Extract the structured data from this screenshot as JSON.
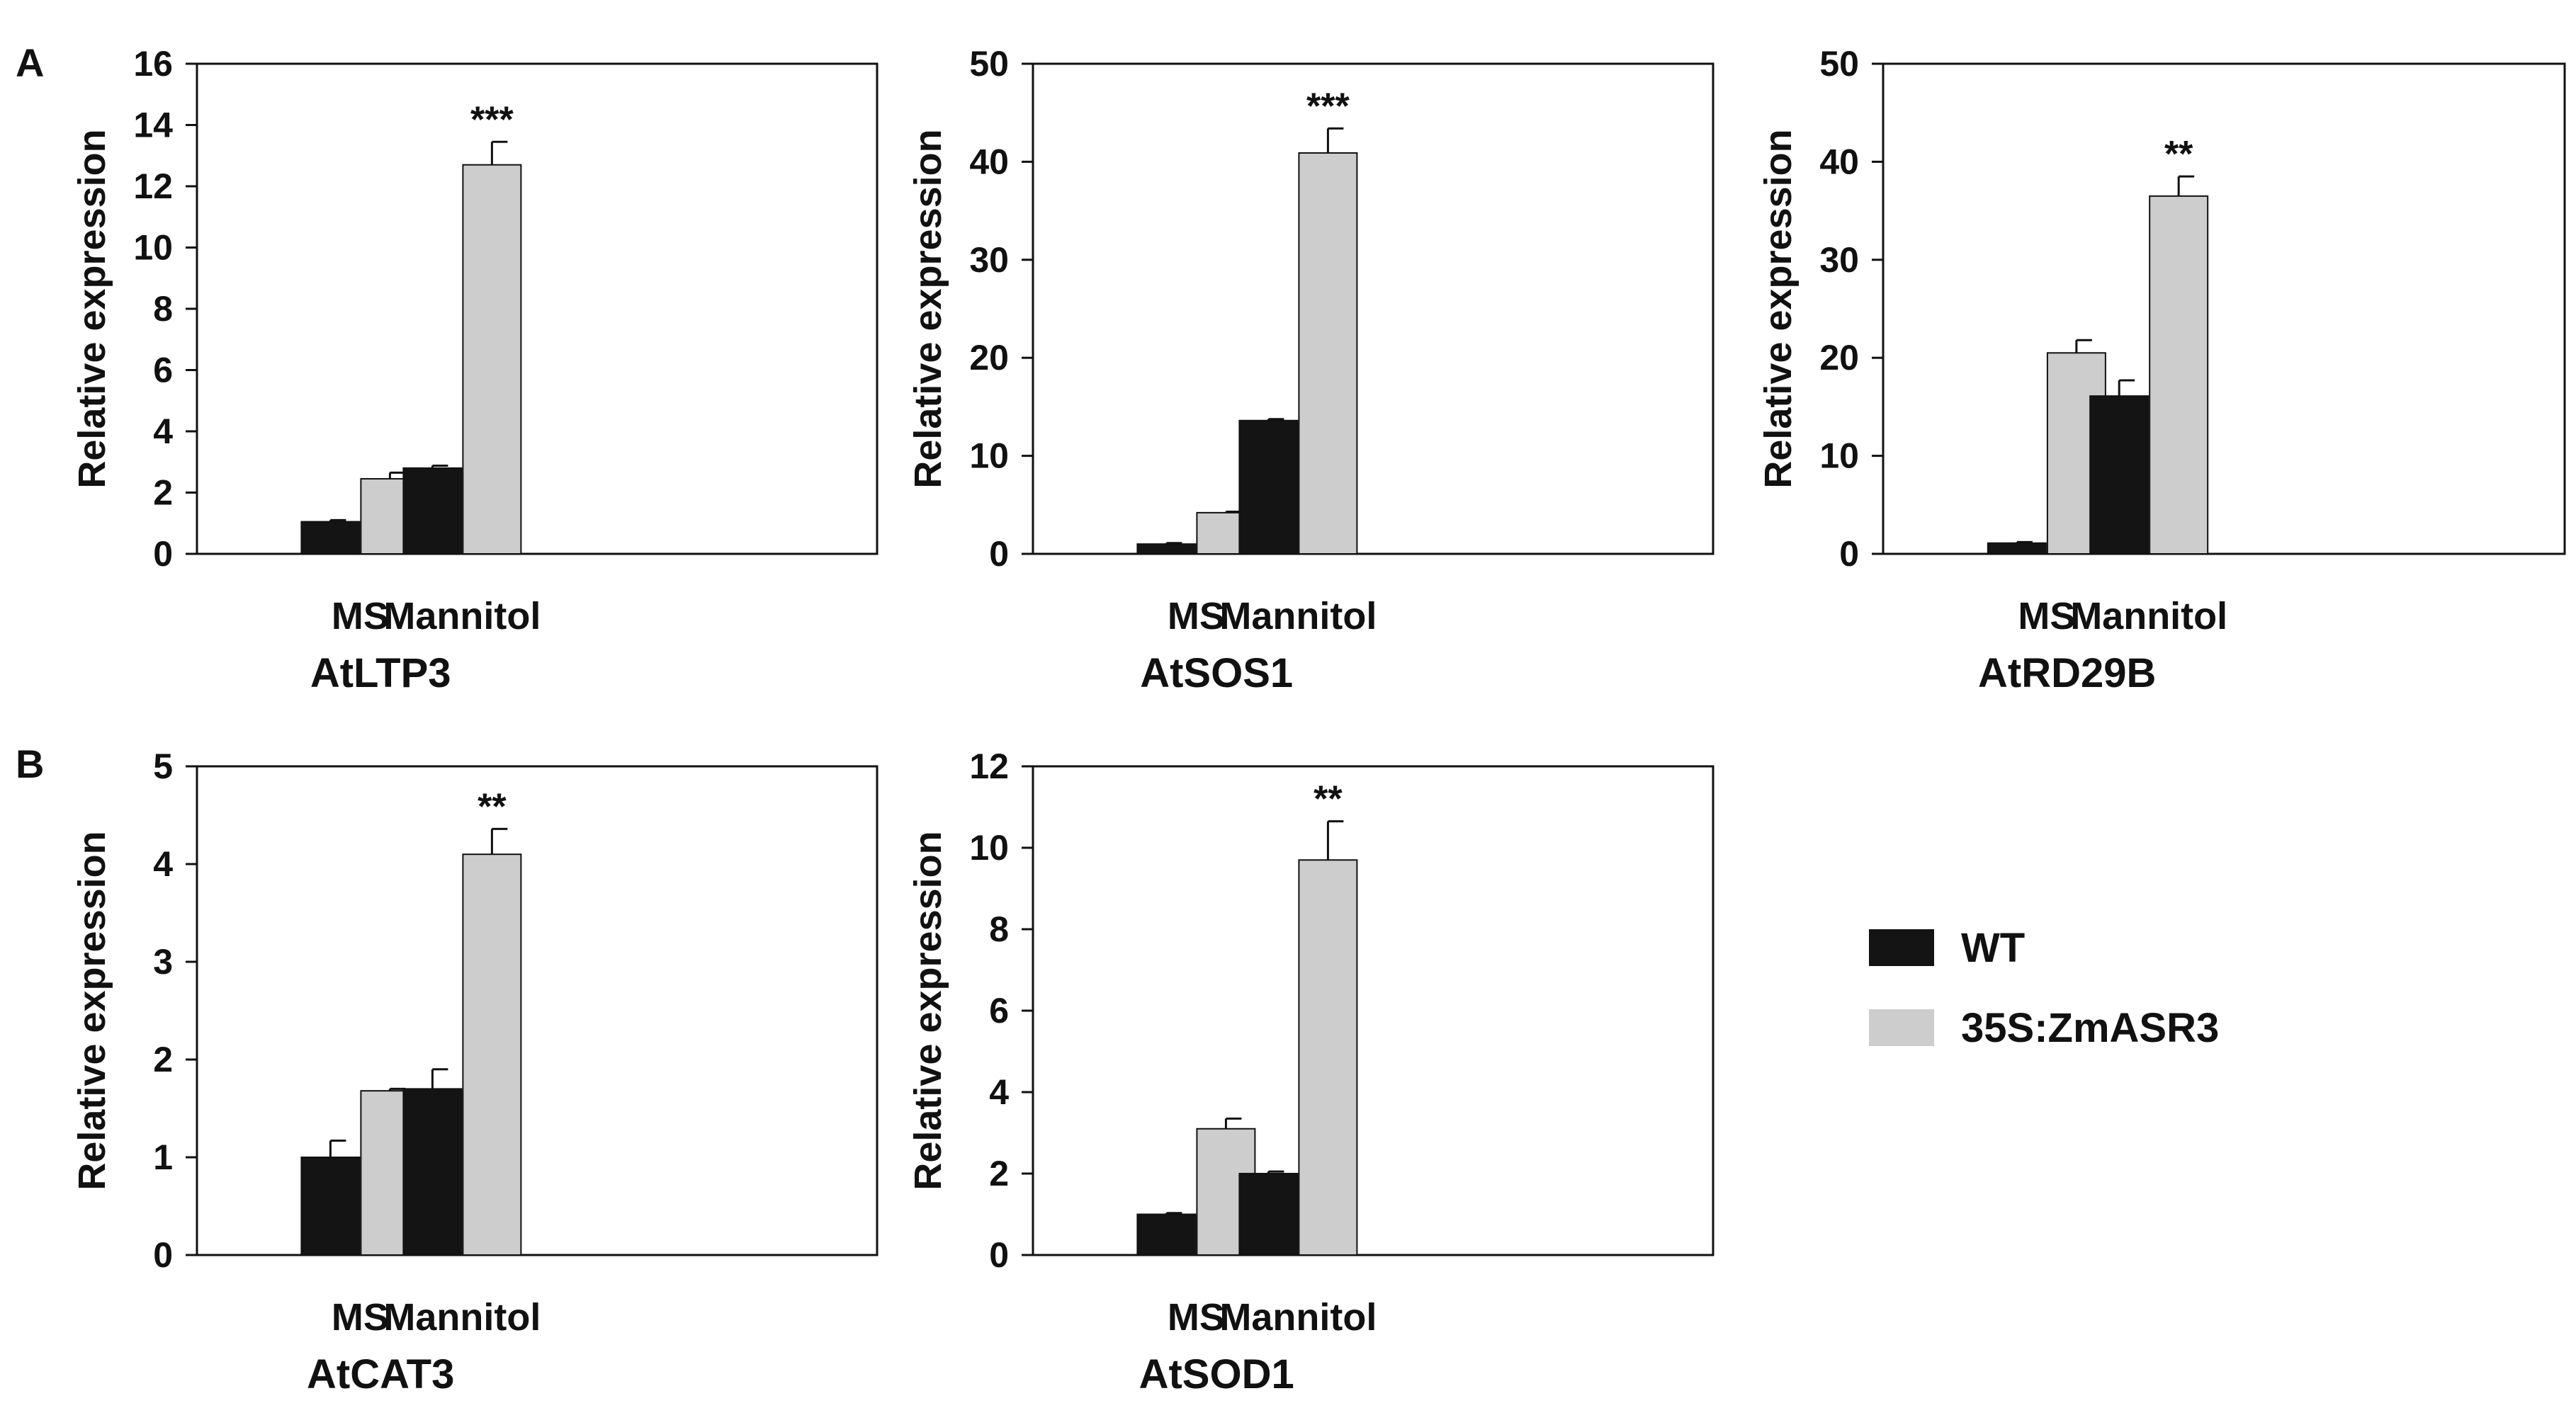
{
  "panel_labels": [
    "A",
    "B"
  ],
  "legend": [
    {
      "label": "WT",
      "color": "#141414"
    },
    {
      "label": "35S:ZmASR3",
      "color": "#cdcdcd"
    }
  ],
  "chart_data": [
    {
      "type": "bar",
      "panel": "A",
      "title": "AtLTP3",
      "xlabel": "AtLTP3",
      "ylabel": "Relative expression",
      "categories": [
        "MS",
        "Mannitol"
      ],
      "ylim": [
        0,
        16
      ],
      "yticks": [
        0,
        2,
        4,
        6,
        8,
        10,
        12,
        14,
        16
      ],
      "series": [
        {
          "name": "WT",
          "values": [
            1.05,
            2.8
          ],
          "errors": [
            0.05,
            0.08
          ]
        },
        {
          "name": "35S:ZmASR3",
          "values": [
            2.45,
            12.7
          ],
          "errors": [
            0.2,
            0.75
          ]
        }
      ],
      "significance": [
        "",
        "***"
      ]
    },
    {
      "type": "bar",
      "panel": "A",
      "title": "AtSOS1",
      "xlabel": "AtSOS1",
      "ylabel": "Relative expression",
      "categories": [
        "MS",
        "Mannitol"
      ],
      "ylim": [
        0,
        50
      ],
      "yticks": [
        0,
        10,
        20,
        30,
        40,
        50
      ],
      "series": [
        {
          "name": "WT",
          "values": [
            1.0,
            13.6
          ],
          "errors": [
            0.1,
            0.15
          ]
        },
        {
          "name": "35S:ZmASR3",
          "values": [
            4.2,
            40.9
          ],
          "errors": [
            0.1,
            2.5
          ]
        }
      ],
      "significance": [
        "",
        "***"
      ]
    },
    {
      "type": "bar",
      "panel": "A",
      "title": "AtRD29B",
      "xlabel": "AtRD29B",
      "ylabel": "Relative expression",
      "categories": [
        "MS",
        "Mannitol"
      ],
      "ylim": [
        0,
        50
      ],
      "yticks": [
        0,
        10,
        20,
        30,
        40,
        50
      ],
      "series": [
        {
          "name": "WT",
          "values": [
            1.1,
            16.1
          ],
          "errors": [
            0.1,
            1.6
          ]
        },
        {
          "name": "35S:ZmASR3",
          "values": [
            20.5,
            36.5
          ],
          "errors": [
            1.3,
            2.0
          ]
        }
      ],
      "significance": [
        "",
        "**"
      ]
    },
    {
      "type": "bar",
      "panel": "B",
      "title": "AtCAT3",
      "xlabel": "AtCAT3",
      "ylabel": "Relative expression",
      "categories": [
        "MS",
        "Mannitol"
      ],
      "ylim": [
        0,
        5
      ],
      "yticks": [
        0,
        1,
        2,
        3,
        4,
        5
      ],
      "series": [
        {
          "name": "WT",
          "values": [
            1.0,
            1.7
          ],
          "errors": [
            0.17,
            0.2
          ]
        },
        {
          "name": "35S:ZmASR3",
          "values": [
            1.68,
            4.1
          ],
          "errors": [
            0.02,
            0.26
          ]
        }
      ],
      "significance": [
        "",
        "**"
      ]
    },
    {
      "type": "bar",
      "panel": "B",
      "title": "AtSOD1",
      "xlabel": "AtSOD1",
      "ylabel": "Relative expression",
      "categories": [
        "MS",
        "Mannitol"
      ],
      "ylim": [
        0,
        12
      ],
      "yticks": [
        0,
        2,
        4,
        6,
        8,
        10,
        12
      ],
      "series": [
        {
          "name": "WT",
          "values": [
            1.0,
            2.0
          ],
          "errors": [
            0.03,
            0.05
          ]
        },
        {
          "name": "35S:ZmASR3",
          "values": [
            3.1,
            9.7
          ],
          "errors": [
            0.25,
            0.95
          ]
        }
      ],
      "significance": [
        "",
        "**"
      ]
    }
  ]
}
